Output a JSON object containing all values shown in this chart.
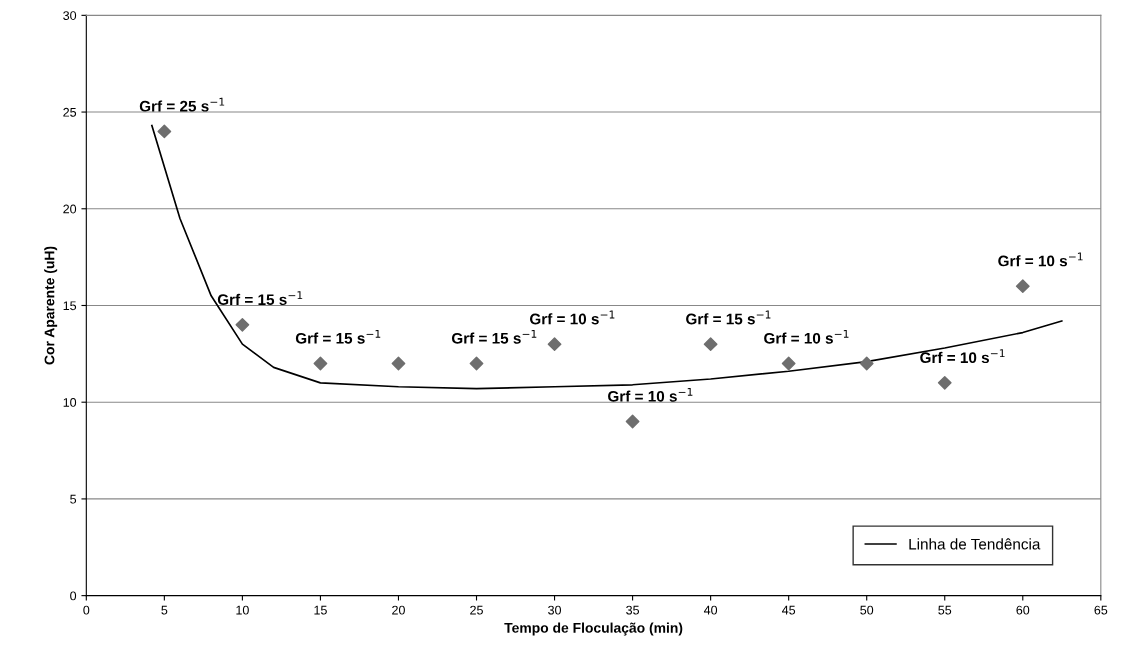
{
  "chart_data": {
    "type": "scatter",
    "xlabel": "Tempo de Floculação (min)",
    "ylabel": "Cor Aparente (uH)",
    "xlim": [
      0,
      65
    ],
    "xticks": [
      0,
      5,
      10,
      15,
      20,
      25,
      30,
      35,
      40,
      45,
      50,
      55,
      60,
      65
    ],
    "ylim": [
      0,
      30
    ],
    "yticks": [
      0,
      5,
      10,
      15,
      20,
      25,
      30
    ],
    "grid": "y",
    "legend": "bottom right",
    "series": [
      {
        "color": "#6e6e6e",
        "marker": "diamond",
        "x": [
          5,
          10,
          15,
          20,
          25,
          30,
          35,
          40,
          45,
          50,
          55,
          60
        ],
        "values": [
          24,
          14,
          12,
          12,
          12,
          13,
          9,
          13,
          12,
          12,
          11,
          16
        ]
      },
      {
        "type": "line",
        "name": "Linha de Tendência",
        "color": "#000000",
        "marker": "none",
        "x": [
          4.2,
          6,
          8,
          10,
          12,
          15,
          20,
          25,
          30,
          35,
          40,
          45,
          50,
          55,
          60,
          62.5
        ],
        "values": [
          24.3,
          19.5,
          15.5,
          13,
          11.8,
          11,
          10.8,
          10.7,
          10.8,
          10.9,
          11.2,
          11.6,
          12.1,
          12.8,
          13.6,
          14.2
        ]
      }
    ],
    "annotations": [
      {
        "text": "Grf = 25 s$^{−1}$",
        "x": 5,
        "y": 24
      },
      {
        "text": "Grf = 15 s$^{−1}$",
        "x": 10,
        "y": 14
      },
      {
        "text": "Grf = 15 s$^{−1}$",
        "x": 15,
        "y": 12
      },
      {
        "text": "Grf = 15 s$^{−1}$",
        "x": 25,
        "y": 12
      },
      {
        "text": "Grf = 10 s$^{−1}$",
        "x": 30,
        "y": 13
      },
      {
        "text": "Grf = 10 s$^{−1}$",
        "x": 35,
        "y": 9
      },
      {
        "text": "Grf = 15 s$^{−1}$",
        "x": 40,
        "y": 13
      },
      {
        "text": "Grf = 10 s$^{−1}$",
        "x": 45,
        "y": 12
      },
      {
        "text": "Grf = 10 s$^{−1}$",
        "x": 55,
        "y": 11
      },
      {
        "text": "Grf = 10 s$^{−1}$",
        "x": 60,
        "y": 16
      }
    ]
  }
}
